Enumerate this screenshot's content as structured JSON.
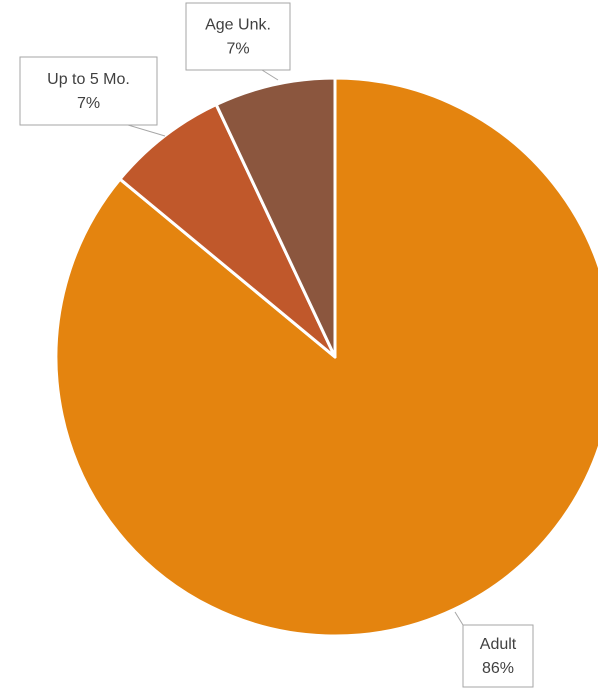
{
  "chart_data": {
    "type": "pie",
    "categories": [
      "Adult",
      "Up to 5 Mo.",
      "Age Unk."
    ],
    "values": [
      86,
      7,
      7
    ],
    "value_labels": [
      "86%",
      "7%",
      "7%"
    ],
    "colors": [
      "#E4840F",
      "#C0582B",
      "#8B563E"
    ]
  }
}
